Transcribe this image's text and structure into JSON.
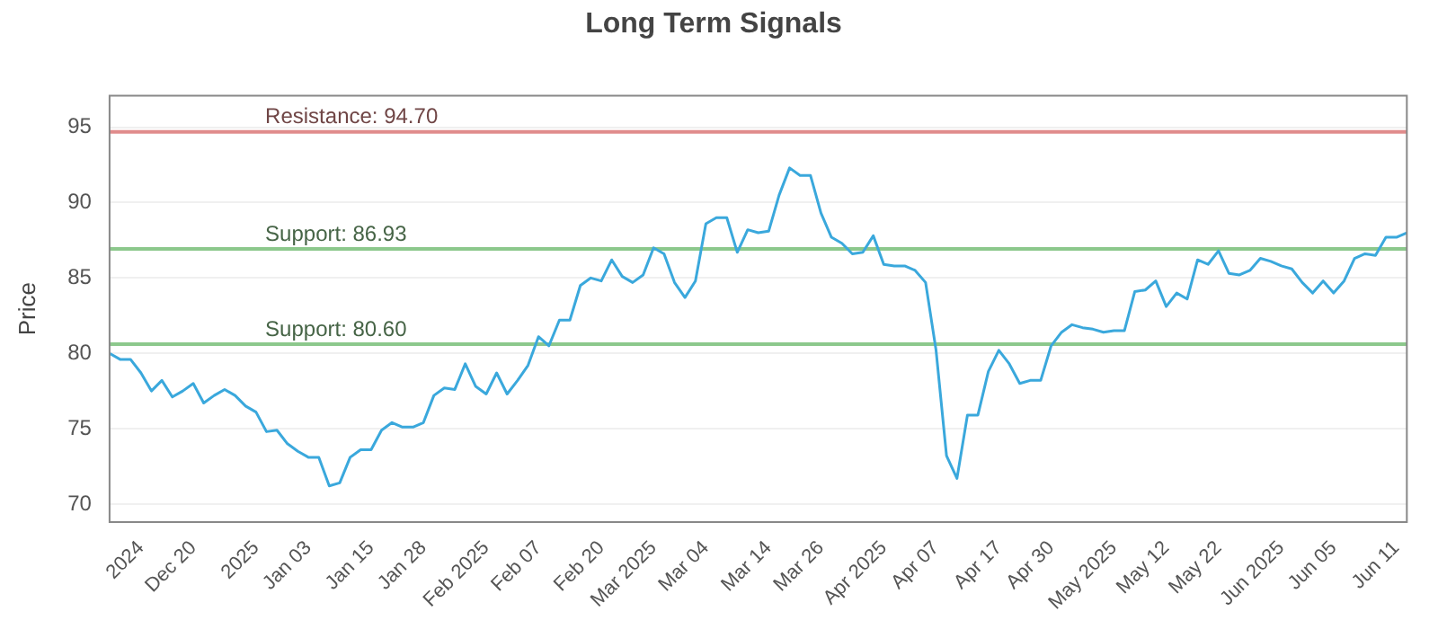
{
  "chart_data": {
    "type": "line",
    "title": "Long Term Signals",
    "ylabel": "Price",
    "categories": [
      null,
      null,
      null,
      "2024",
      null,
      null,
      null,
      null,
      "Dec 20",
      null,
      null,
      null,
      null,
      null,
      "2025",
      null,
      null,
      null,
      null,
      "Jan 03",
      null,
      null,
      null,
      null,
      null,
      "Jan 15",
      null,
      null,
      null,
      null,
      "Jan 28",
      null,
      null,
      null,
      null,
      null,
      "Feb 2025",
      null,
      null,
      null,
      null,
      "Feb 07",
      null,
      null,
      null,
      null,
      null,
      "Feb 20",
      null,
      null,
      null,
      null,
      "Mar 2025",
      null,
      null,
      null,
      null,
      "Mar 04",
      null,
      null,
      null,
      null,
      null,
      "Mar 14",
      null,
      null,
      null,
      null,
      "Mar 26",
      null,
      null,
      null,
      null,
      null,
      "Apr 2025",
      null,
      null,
      null,
      null,
      "Apr 07",
      null,
      null,
      null,
      null,
      null,
      "Apr 17",
      null,
      null,
      null,
      null,
      "Apr 30",
      null,
      null,
      null,
      null,
      null,
      "May 2025",
      null,
      null,
      null,
      null,
      "May 12",
      null,
      null,
      null,
      null,
      "May 22",
      null,
      null,
      null,
      null,
      null,
      "Jun 2025",
      null,
      null,
      null,
      null,
      "Jun 05",
      null,
      null,
      null,
      null,
      null,
      "Jun 11",
      null
    ],
    "series": [
      {
        "color": "#3aa8dc",
        "values": [
          80.0,
          79.6,
          79.6,
          78.7,
          77.5,
          78.2,
          77.1,
          77.5,
          78.0,
          76.7,
          77.2,
          77.6,
          77.2,
          76.5,
          76.1,
          74.8,
          74.9,
          74.0,
          73.5,
          73.1,
          73.1,
          71.2,
          71.4,
          73.1,
          73.6,
          73.6,
          74.9,
          75.4,
          75.1,
          75.1,
          75.4,
          77.2,
          77.7,
          77.6,
          79.3,
          77.8,
          77.3,
          78.7,
          77.3,
          78.2,
          79.2,
          81.1,
          80.5,
          82.2,
          82.2,
          84.5,
          85.0,
          84.8,
          86.2,
          85.1,
          84.7,
          85.2,
          87.0,
          86.6,
          84.7,
          83.7,
          84.8,
          88.6,
          89.0,
          89.0,
          86.7,
          88.2,
          88.0,
          88.1,
          90.5,
          92.3,
          91.8,
          91.8,
          89.3,
          87.7,
          87.3,
          86.6,
          86.7,
          87.8,
          85.9,
          85.8,
          85.8,
          85.5,
          84.7,
          80.2,
          73.2,
          71.7,
          75.9,
          75.9,
          78.8,
          80.2,
          79.3,
          78.0,
          78.2,
          78.2,
          80.5,
          81.4,
          81.9,
          81.7,
          81.6,
          81.4,
          81.5,
          81.5,
          84.1,
          84.2,
          84.8,
          83.1,
          84.0,
          83.6,
          86.2,
          85.9,
          86.8,
          85.3,
          85.2,
          85.5,
          86.3,
          86.1,
          85.8,
          85.6,
          84.7,
          84.0,
          84.8,
          84.0,
          84.8,
          86.3,
          86.6,
          86.5,
          87.7,
          87.7,
          88.0
        ]
      }
    ],
    "ylim": [
      68.8,
      97.1
    ],
    "yticks": [
      70,
      75,
      80,
      85,
      90,
      95
    ],
    "grid": "y",
    "marker": "none",
    "line_style": "solid",
    "legend": false,
    "ref_lines": [
      {
        "axis": "y",
        "value": 94.7,
        "label": "Resistance: 94.70",
        "color": "#e08c8c"
      },
      {
        "axis": "y",
        "value": 86.93,
        "label": "Support: 86.93",
        "color": "#8cc88c"
      },
      {
        "axis": "y",
        "value": 80.6,
        "label": "Support: 80.60",
        "color": "#8cc88c"
      }
    ]
  }
}
